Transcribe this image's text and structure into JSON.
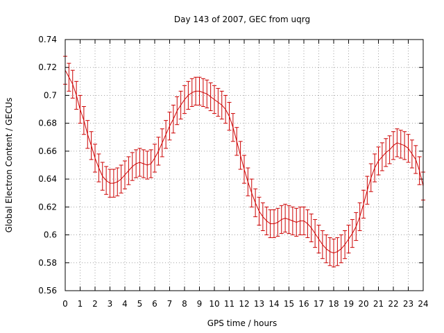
{
  "chart_data": {
    "type": "line",
    "title": "Day 143 of 2007, GEC from uqrg",
    "xlabel": "GPS time / hours",
    "ylabel": "Global Electron Content / GECUs",
    "xlim": [
      0,
      24
    ],
    "ylim": [
      0.56,
      0.74
    ],
    "grid": true,
    "error_bars": true,
    "error_halfwidth": 0.01,
    "color": "#cc0000",
    "x_ticks": [
      "0",
      "1",
      "2",
      "3",
      "4",
      "5",
      "6",
      "7",
      "8",
      "9",
      "10",
      "11",
      "12",
      "13",
      "14",
      "15",
      "16",
      "17",
      "18",
      "19",
      "20",
      "21",
      "22",
      "23",
      "24"
    ],
    "y_ticks": [
      "0.56",
      "0.58",
      "0.6",
      "0.62",
      "0.64",
      "0.66",
      "0.68",
      "0.7",
      "0.72",
      "0.74"
    ],
    "series": [
      {
        "x": [
          0,
          0.25,
          0.5,
          0.75,
          1,
          1.25,
          1.5,
          1.75,
          2,
          2.25,
          2.5,
          2.75,
          3,
          3.25,
          3.5,
          3.75,
          4,
          4.25,
          4.5,
          4.75,
          5,
          5.25,
          5.5,
          5.75,
          6,
          6.25,
          6.5,
          6.75,
          7,
          7.25,
          7.5,
          7.75,
          8,
          8.25,
          8.5,
          8.75,
          9,
          9.25,
          9.5,
          9.75,
          10,
          10.25,
          10.5,
          10.75,
          11,
          11.25,
          11.5,
          11.75,
          12,
          12.25,
          12.5,
          12.75,
          13,
          13.25,
          13.5,
          13.75,
          14,
          14.25,
          14.5,
          14.75,
          15,
          15.25,
          15.5,
          15.75,
          16,
          16.25,
          16.5,
          16.75,
          17,
          17.25,
          17.5,
          17.75,
          18,
          18.25,
          18.5,
          18.75,
          19,
          19.25,
          19.5,
          19.75,
          20,
          20.25,
          20.5,
          20.75,
          21,
          21.25,
          21.5,
          21.75,
          22,
          22.25,
          22.5,
          22.75,
          23,
          23.25,
          23.5,
          23.75,
          24
        ],
        "y": [
          0.718,
          0.713,
          0.708,
          0.7,
          0.69,
          0.682,
          0.672,
          0.664,
          0.655,
          0.648,
          0.642,
          0.639,
          0.637,
          0.637,
          0.638,
          0.64,
          0.643,
          0.646,
          0.649,
          0.651,
          0.652,
          0.651,
          0.65,
          0.651,
          0.655,
          0.66,
          0.666,
          0.672,
          0.678,
          0.683,
          0.689,
          0.693,
          0.697,
          0.7,
          0.702,
          0.703,
          0.703,
          0.702,
          0.701,
          0.699,
          0.697,
          0.695,
          0.693,
          0.69,
          0.685,
          0.677,
          0.667,
          0.657,
          0.647,
          0.638,
          0.63,
          0.623,
          0.617,
          0.613,
          0.61,
          0.608,
          0.608,
          0.609,
          0.611,
          0.612,
          0.611,
          0.61,
          0.609,
          0.61,
          0.61,
          0.608,
          0.605,
          0.601,
          0.597,
          0.593,
          0.59,
          0.588,
          0.587,
          0.588,
          0.59,
          0.593,
          0.597,
          0.601,
          0.606,
          0.613,
          0.622,
          0.632,
          0.641,
          0.648,
          0.653,
          0.656,
          0.659,
          0.661,
          0.664,
          0.666,
          0.665,
          0.664,
          0.662,
          0.658,
          0.654,
          0.646,
          0.635
        ]
      }
    ]
  }
}
